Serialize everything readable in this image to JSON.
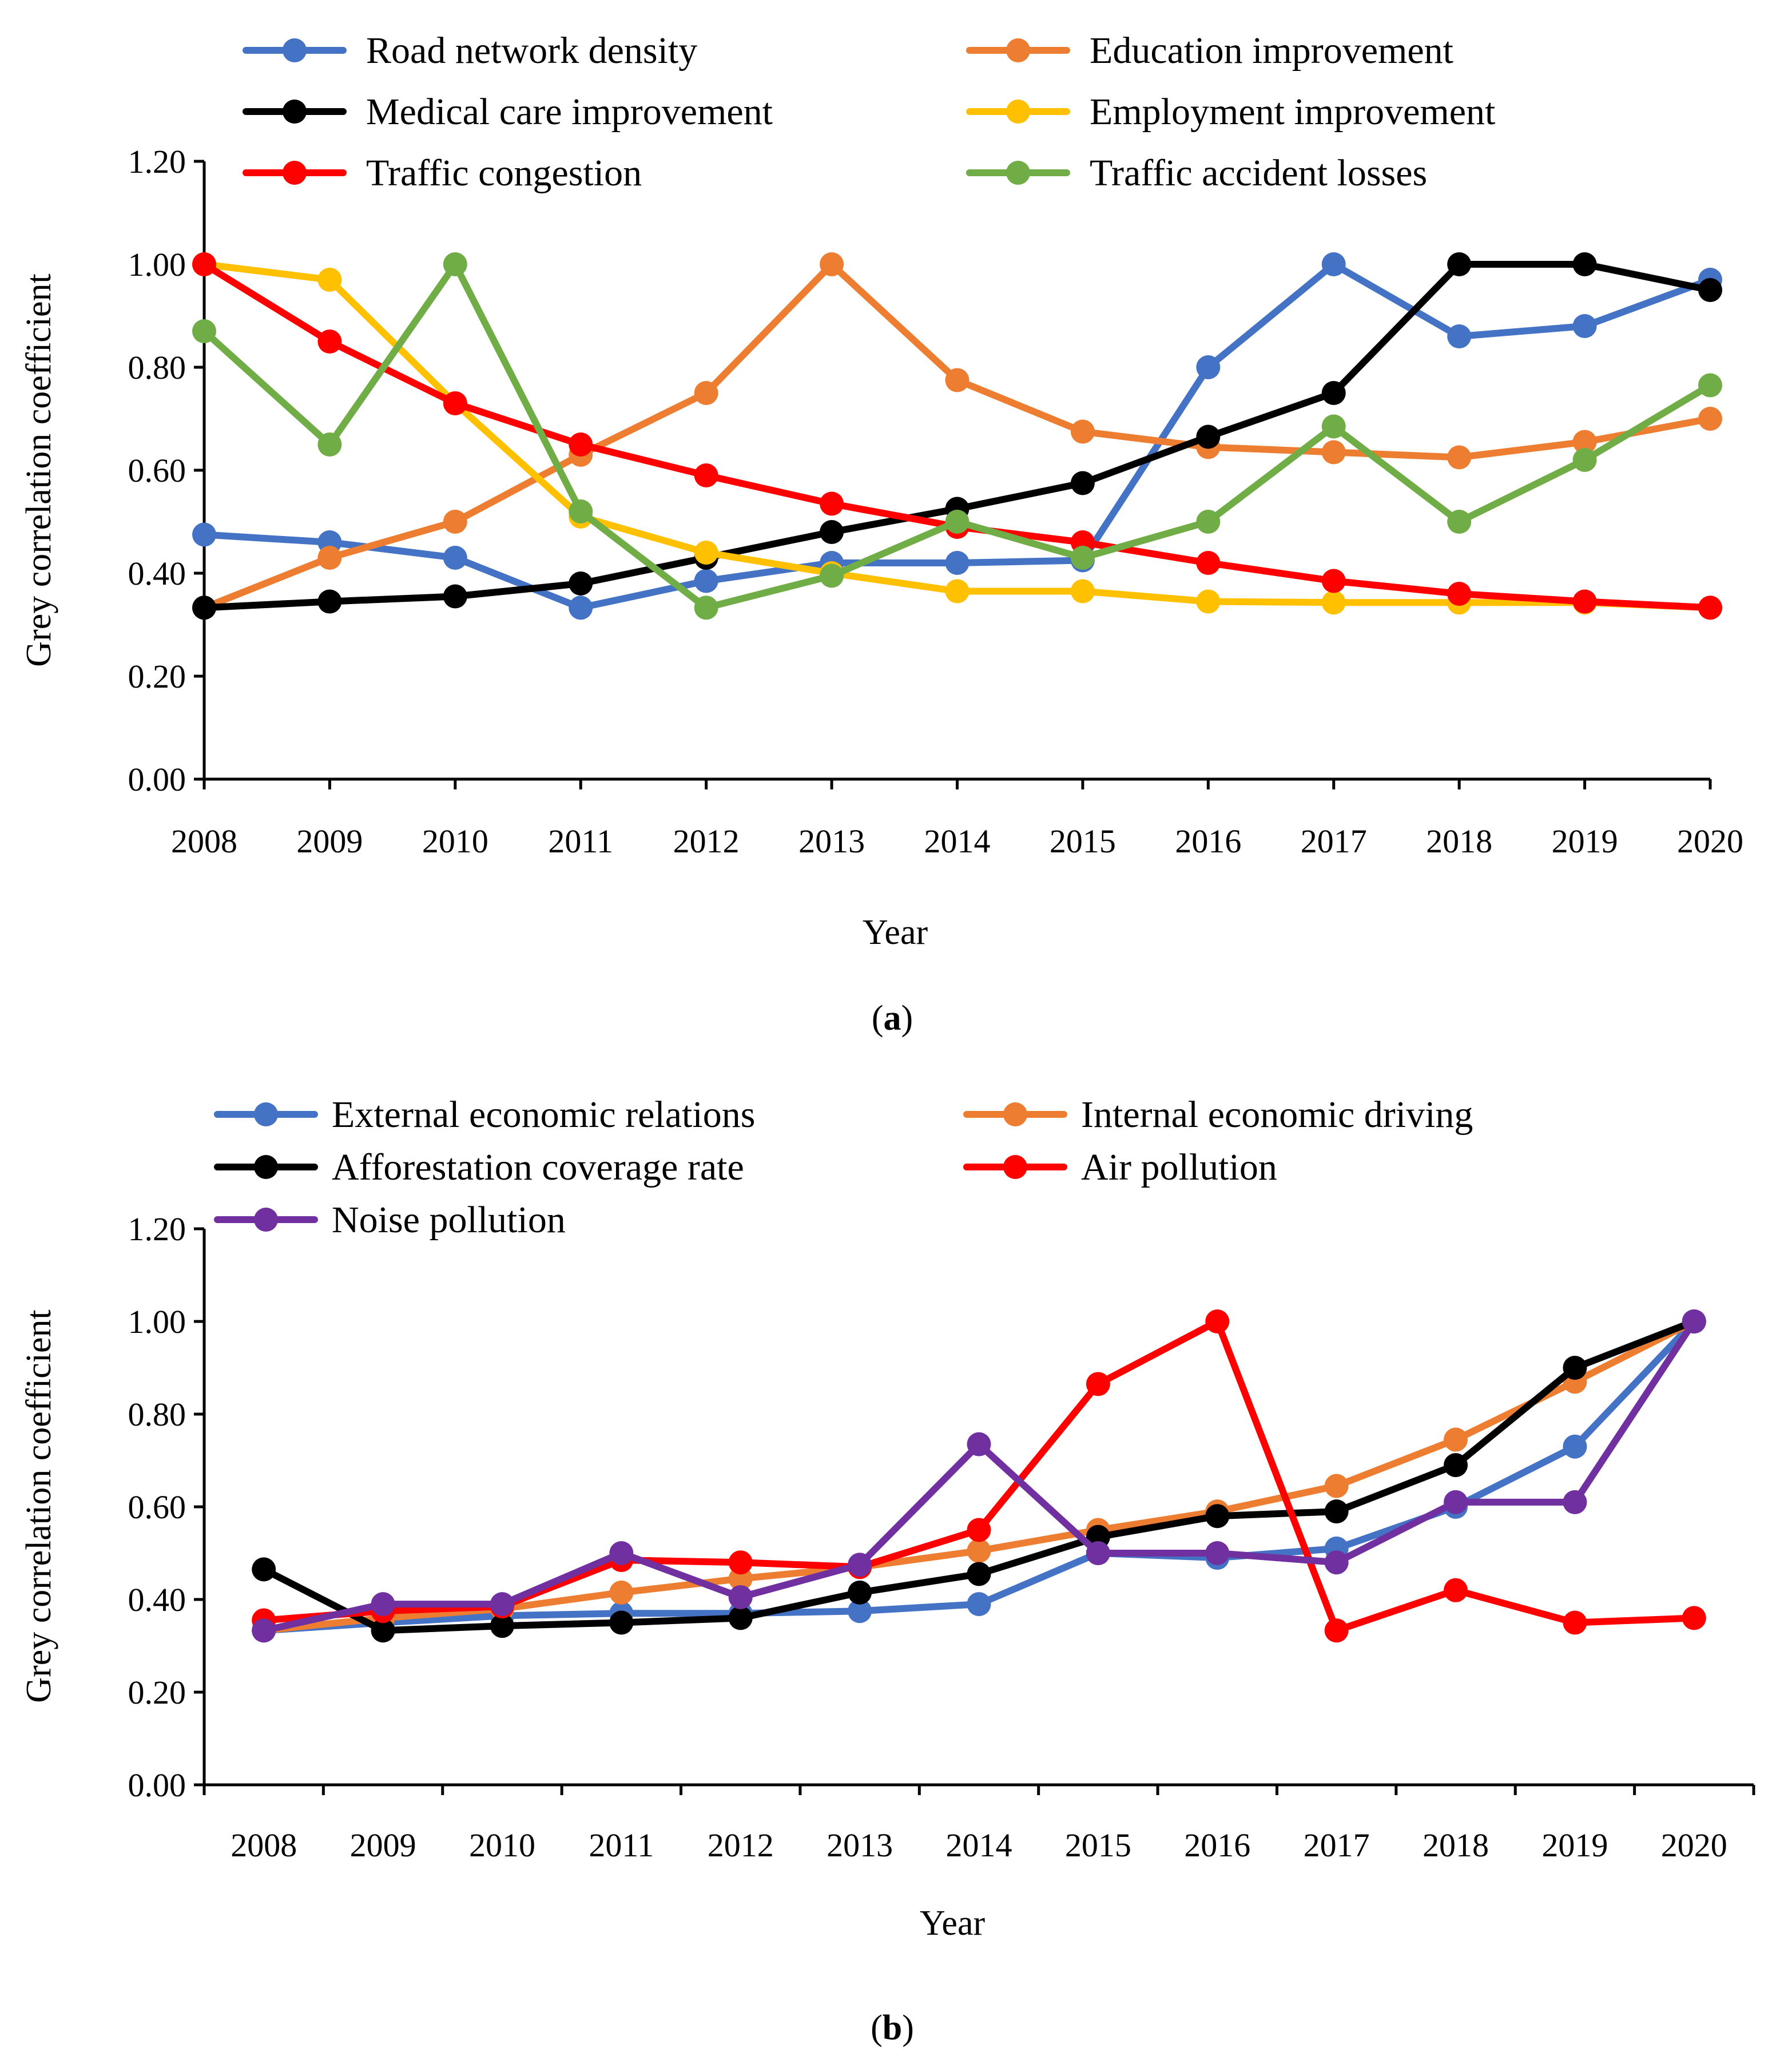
{
  "chart_data": [
    {
      "id": "a",
      "type": "line",
      "panel_label": "a",
      "categories": [
        "2008",
        "2009",
        "2010",
        "2011",
        "2012",
        "2013",
        "2014",
        "2015",
        "2016",
        "2017",
        "2018",
        "2019",
        "2020"
      ],
      "xlabel": "Year",
      "ylabel": "Grey correlation coefficient",
      "ylim": [
        0,
        1.2
      ],
      "yticks": [
        "0.00",
        "0.20",
        "0.40",
        "0.60",
        "0.80",
        "1.00",
        "1.20"
      ],
      "ytick_values": [
        0,
        0.2,
        0.4,
        0.6,
        0.8,
        1.0,
        1.2
      ],
      "legend_position": "top",
      "series": [
        {
          "name": "Road network density",
          "color": "#4472C4",
          "values": [
            0.475,
            0.46,
            0.43,
            0.333,
            0.385,
            0.42,
            0.42,
            0.425,
            0.8,
            1.0,
            0.86,
            0.88,
            0.97
          ]
        },
        {
          "name": "Education improvement",
          "color": "#ED7D31",
          "values": [
            0.333,
            0.43,
            0.5,
            0.63,
            0.75,
            1.0,
            0.775,
            0.675,
            0.645,
            0.635,
            0.625,
            0.655,
            0.7
          ]
        },
        {
          "name": "Medical care improvement",
          "color": "#000000",
          "values": [
            0.333,
            0.345,
            0.355,
            0.38,
            0.43,
            0.48,
            0.525,
            0.575,
            0.665,
            0.75,
            1.0,
            1.0,
            0.95
          ]
        },
        {
          "name": "Employment improvement",
          "color": "#FFC000",
          "values": [
            1.0,
            0.97,
            0.73,
            0.51,
            0.44,
            0.4,
            0.365,
            0.365,
            0.345,
            0.343,
            0.343,
            0.343,
            0.333
          ]
        },
        {
          "name": "Traffic congestion",
          "color": "#FF0000",
          "values": [
            1.0,
            0.85,
            0.73,
            0.65,
            0.59,
            0.535,
            0.49,
            0.46,
            0.42,
            0.385,
            0.36,
            0.345,
            0.333
          ]
        },
        {
          "name": "Traffic accident losses",
          "color": "#70AD47",
          "values": [
            0.87,
            0.65,
            1.0,
            0.52,
            0.333,
            0.395,
            0.5,
            0.43,
            0.5,
            0.685,
            0.5,
            0.62,
            0.765
          ]
        }
      ]
    },
    {
      "id": "b",
      "type": "line",
      "panel_label": "b",
      "categories": [
        "2008",
        "2009",
        "2010",
        "2011",
        "2012",
        "2013",
        "2014",
        "2015",
        "2016",
        "2017",
        "2018",
        "2019",
        "2020"
      ],
      "xlabel": "Year",
      "ylabel": "Grey correlation coefficient",
      "ylim": [
        0,
        1.2
      ],
      "yticks": [
        "0.00",
        "0.20",
        "0.40",
        "0.60",
        "0.80",
        "1.00",
        "1.20"
      ],
      "ytick_values": [
        0,
        0.2,
        0.4,
        0.6,
        0.8,
        1.0,
        1.2
      ],
      "legend_position": "top",
      "series": [
        {
          "name": "External economic relations",
          "color": "#4472C4",
          "values": [
            0.333,
            0.35,
            0.365,
            0.37,
            0.37,
            0.375,
            0.39,
            0.5,
            0.49,
            0.51,
            0.6,
            0.73,
            1.0
          ]
        },
        {
          "name": "Internal economic driving",
          "color": "#ED7D31",
          "values": [
            0.333,
            0.36,
            0.38,
            0.415,
            0.445,
            0.47,
            0.505,
            0.55,
            0.59,
            0.645,
            0.745,
            0.87,
            1.0
          ]
        },
        {
          "name": "Afforestation coverage rate",
          "color": "#000000",
          "values": [
            0.465,
            0.333,
            0.343,
            0.35,
            0.36,
            0.415,
            0.455,
            0.535,
            0.58,
            0.59,
            0.69,
            0.9,
            1.0
          ]
        },
        {
          "name": "Air pollution",
          "color": "#FF0000",
          "values": [
            0.355,
            0.375,
            0.385,
            0.485,
            0.48,
            0.47,
            0.55,
            0.865,
            1.0,
            0.333,
            0.42,
            0.35,
            0.36
          ]
        },
        {
          "name": "Noise pollution",
          "color": "#7030A0",
          "values": [
            0.333,
            0.39,
            0.39,
            0.5,
            0.405,
            0.475,
            0.735,
            0.5,
            0.5,
            0.48,
            0.61,
            0.61,
            1.0
          ]
        }
      ]
    }
  ]
}
